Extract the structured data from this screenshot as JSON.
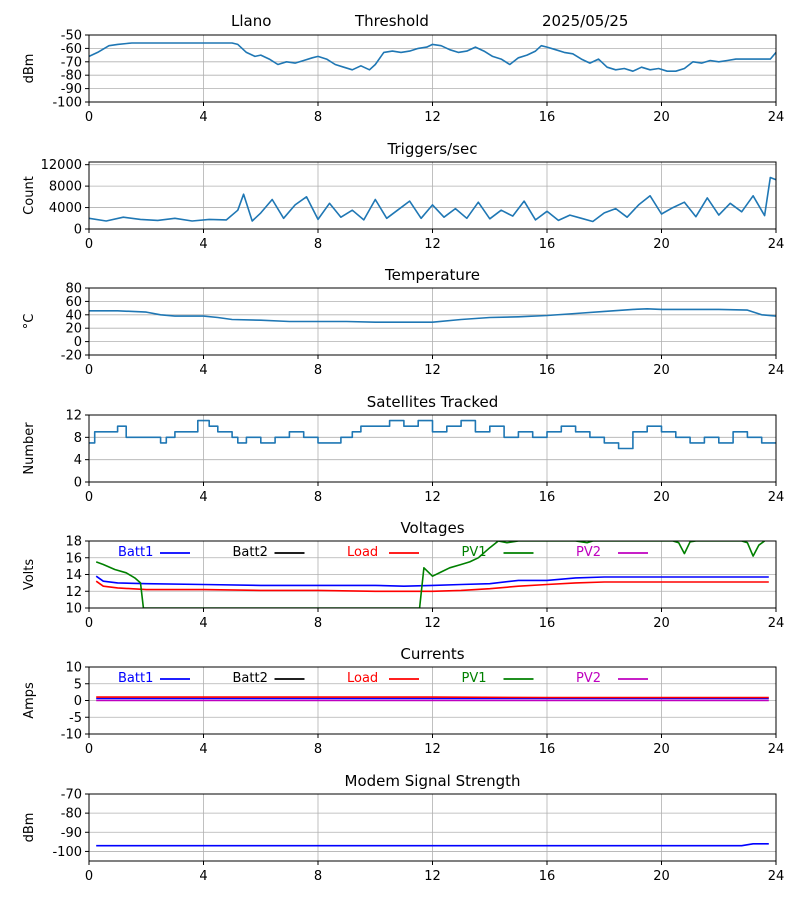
{
  "header": {
    "station": "Llano",
    "mode": "Threshold",
    "date": "2025/05/25"
  },
  "colors": {
    "series": "#1f77b4",
    "grid": "#b0b0b0",
    "batt1": "#0000ff",
    "batt2": "#000000",
    "load": "#ff0000",
    "pv1": "#008000",
    "pv2": "#bf00bf"
  },
  "chart_data": [
    {
      "id": "threshold",
      "type": "line",
      "title": "",
      "ylabel": "dBm",
      "grid": true,
      "xlim": [
        0,
        24
      ],
      "xticks": [
        0,
        4,
        8,
        12,
        16,
        20,
        24
      ],
      "ylim": [
        -100,
        -50
      ],
      "yticks": [
        -100,
        -90,
        -80,
        -70,
        -60,
        -50
      ],
      "series": [
        {
          "color_key": "series",
          "x": [
            0.0,
            0.3,
            0.7,
            1.0,
            1.5,
            2.0,
            2.5,
            3.0,
            3.5,
            4.0,
            4.5,
            5.0,
            5.2,
            5.5,
            5.8,
            6.0,
            6.3,
            6.6,
            6.9,
            7.2,
            7.5,
            7.8,
            8.0,
            8.3,
            8.6,
            8.9,
            9.2,
            9.5,
            9.8,
            10.0,
            10.3,
            10.6,
            10.9,
            11.2,
            11.5,
            11.8,
            12.0,
            12.3,
            12.6,
            12.9,
            13.2,
            13.5,
            13.8,
            14.1,
            14.4,
            14.7,
            15.0,
            15.3,
            15.6,
            15.8,
            16.0,
            16.3,
            16.6,
            16.9,
            17.2,
            17.5,
            17.8,
            18.1,
            18.4,
            18.7,
            19.0,
            19.3,
            19.6,
            19.9,
            20.2,
            20.5,
            20.8,
            21.1,
            21.4,
            21.7,
            22.0,
            22.3,
            22.6,
            22.9,
            23.2,
            23.5,
            23.8,
            24.0
          ],
          "y": [
            -66,
            -63,
            -58,
            -57,
            -56,
            -56,
            -56,
            -56,
            -56,
            -56,
            -56,
            -56,
            -57,
            -63,
            -66,
            -65,
            -68,
            -72,
            -70,
            -71,
            -69,
            -67,
            -66,
            -68,
            -72,
            -74,
            -76,
            -73,
            -76,
            -72,
            -63,
            -62,
            -63,
            -62,
            -60,
            -59,
            -57,
            -58,
            -61,
            -63,
            -62,
            -59,
            -62,
            -66,
            -68,
            -72,
            -67,
            -65,
            -62,
            -58,
            -59,
            -61,
            -63,
            -64,
            -68,
            -71,
            -68,
            -74,
            -76,
            -75,
            -77,
            -74,
            -76,
            -75,
            -77,
            -77,
            -75,
            -70,
            -71,
            -69,
            -70,
            -69,
            -68,
            -68,
            -68,
            -68,
            -68,
            -63
          ]
        }
      ]
    },
    {
      "id": "triggers",
      "type": "line",
      "title": "Triggers/sec",
      "ylabel": "Count",
      "grid": true,
      "xlim": [
        0,
        24
      ],
      "xticks": [
        0,
        4,
        8,
        12,
        16,
        20,
        24
      ],
      "ylim": [
        0,
        12500
      ],
      "yticks": [
        0,
        4000,
        8000,
        12000
      ],
      "series": [
        {
          "color_key": "series",
          "x": [
            0.0,
            0.6,
            1.2,
            1.8,
            2.4,
            3.0,
            3.6,
            4.2,
            4.8,
            5.2,
            5.4,
            5.7,
            6.0,
            6.4,
            6.8,
            7.2,
            7.6,
            8.0,
            8.4,
            8.8,
            9.2,
            9.6,
            10.0,
            10.4,
            10.8,
            11.2,
            11.6,
            12.0,
            12.4,
            12.8,
            13.2,
            13.6,
            14.0,
            14.4,
            14.8,
            15.2,
            15.6,
            16.0,
            16.4,
            16.8,
            17.2,
            17.6,
            18.0,
            18.4,
            18.8,
            19.2,
            19.6,
            20.0,
            20.4,
            20.8,
            21.2,
            21.6,
            22.0,
            22.4,
            22.8,
            23.2,
            23.6,
            23.8,
            24.0
          ],
          "y": [
            2000,
            1500,
            2200,
            1800,
            1600,
            2000,
            1500,
            1800,
            1700,
            3500,
            6500,
            1500,
            3000,
            5500,
            2000,
            4500,
            6000,
            1800,
            4800,
            2200,
            3500,
            1700,
            5500,
            2000,
            3600,
            5200,
            2000,
            4500,
            2200,
            3800,
            2000,
            5000,
            1900,
            3500,
            2400,
            5200,
            1700,
            3300,
            1600,
            2600,
            2000,
            1400,
            3000,
            3800,
            2200,
            4500,
            6200,
            2800,
            4000,
            5000,
            2300,
            5800,
            2600,
            4800,
            3200,
            6200,
            2500,
            9600,
            9200
          ]
        }
      ]
    },
    {
      "id": "temperature",
      "type": "line",
      "title": "Temperature",
      "ylabel": "°C",
      "grid": true,
      "xlim": [
        0,
        24
      ],
      "xticks": [
        0,
        4,
        8,
        12,
        16,
        20,
        24
      ],
      "ylim": [
        -20,
        80
      ],
      "yticks": [
        -20,
        0,
        20,
        40,
        60,
        80
      ],
      "series": [
        {
          "color_key": "series",
          "x": [
            0,
            1,
            2,
            2.5,
            3,
            4,
            4.5,
            5,
            6,
            7,
            8,
            9,
            10,
            11,
            12,
            13,
            14,
            15,
            16,
            17,
            18,
            19,
            19.5,
            20,
            21,
            22,
            23,
            23.5,
            24
          ],
          "y": [
            46,
            46,
            44,
            40,
            38,
            38,
            36,
            33,
            32,
            30,
            30,
            30,
            29,
            29,
            29,
            33,
            36,
            37,
            39,
            42,
            45,
            48,
            49,
            48,
            48,
            48,
            47,
            40,
            38
          ]
        }
      ]
    },
    {
      "id": "satellites",
      "type": "line",
      "title": "Satellites Tracked",
      "ylabel": "Number",
      "grid": true,
      "xlim": [
        0,
        24
      ],
      "xticks": [
        0,
        4,
        8,
        12,
        16,
        20,
        24
      ],
      "ylim": [
        0,
        12
      ],
      "yticks": [
        0,
        4,
        8,
        12
      ],
      "series": [
        {
          "color_key": "series",
          "step": true,
          "x": [
            0,
            0.2,
            1.0,
            1.3,
            1.5,
            2.5,
            2.7,
            3.0,
            3.8,
            4.2,
            4.5,
            5.0,
            5.2,
            5.5,
            6.0,
            6.5,
            7.0,
            7.5,
            8.0,
            8.2,
            8.8,
            9.2,
            9.5,
            10.0,
            10.5,
            11.0,
            11.5,
            12.0,
            12.5,
            13.0,
            13.5,
            14.0,
            14.5,
            15.0,
            15.5,
            16.0,
            16.5,
            17.0,
            17.5,
            18.0,
            18.5,
            19.0,
            19.5,
            20.0,
            20.5,
            21.0,
            21.5,
            22.0,
            22.5,
            23.0,
            23.5,
            24.0
          ],
          "y": [
            7,
            9,
            10,
            8,
            8,
            7,
            8,
            9,
            11,
            10,
            9,
            8,
            7,
            8,
            7,
            8,
            9,
            8,
            7,
            7,
            8,
            9,
            10,
            10,
            11,
            10,
            11,
            9,
            10,
            11,
            9,
            10,
            8,
            9,
            8,
            9,
            10,
            9,
            8,
            7,
            6,
            9,
            10,
            9,
            8,
            7,
            8,
            7,
            9,
            8,
            7,
            7
          ]
        }
      ]
    },
    {
      "id": "voltages",
      "type": "line",
      "title": "Voltages",
      "ylabel": "Volts",
      "grid": true,
      "xlim": [
        0,
        24
      ],
      "xticks": [
        0,
        4,
        8,
        12,
        16,
        20,
        24
      ],
      "ylim": [
        10,
        18
      ],
      "yticks": [
        10,
        12,
        14,
        16,
        18
      ],
      "legend": [
        "Batt1",
        "Batt2",
        "Load",
        "PV1",
        "PV2"
      ],
      "series": [
        {
          "name": "Batt1",
          "color_key": "batt1",
          "x": [
            0.25,
            0.5,
            1,
            2,
            4,
            6,
            8,
            10,
            11,
            12,
            13,
            14,
            15,
            16,
            17,
            18,
            20,
            22,
            23.75
          ],
          "y": [
            13.8,
            13.2,
            13.0,
            12.9,
            12.8,
            12.7,
            12.7,
            12.7,
            12.6,
            12.7,
            12.8,
            12.9,
            13.3,
            13.3,
            13.6,
            13.7,
            13.7,
            13.7,
            13.7
          ]
        },
        {
          "name": "Load",
          "color_key": "load",
          "x": [
            0.25,
            0.5,
            1,
            2,
            4,
            6,
            8,
            10,
            11,
            12,
            13,
            14,
            15,
            16,
            17,
            18,
            20,
            22,
            23.75
          ],
          "y": [
            13.2,
            12.6,
            12.4,
            12.2,
            12.2,
            12.1,
            12.1,
            12.0,
            12.0,
            12.0,
            12.1,
            12.3,
            12.6,
            12.8,
            13.0,
            13.1,
            13.1,
            13.1,
            13.1
          ]
        },
        {
          "name": "PV1",
          "color_key": "pv1",
          "x": [
            0.25,
            0.5,
            0.9,
            1.3,
            1.5,
            1.6,
            1.8,
            1.9,
            11.55,
            11.7,
            12.0,
            12.3,
            12.6,
            13.0,
            13.3,
            13.6,
            14.0,
            14.3,
            14.6,
            15.0,
            17.0,
            17.4,
            17.6,
            17.8,
            18.0,
            20.4,
            20.6,
            20.8,
            21.0,
            21.2,
            22.8,
            23.0,
            23.2,
            23.4,
            23.6
          ],
          "y": [
            15.5,
            15.2,
            14.6,
            14.2,
            13.8,
            13.6,
            13.0,
            10.0,
            10.0,
            14.8,
            13.8,
            14.3,
            14.8,
            15.2,
            15.5,
            16.0,
            17.2,
            18.0,
            17.8,
            18.0,
            18.0,
            17.8,
            18.0,
            18.0,
            18.0,
            18.0,
            17.8,
            16.5,
            17.9,
            18.0,
            18.0,
            17.8,
            16.2,
            17.5,
            18.0
          ]
        }
      ]
    },
    {
      "id": "currents",
      "type": "line",
      "title": "Currents",
      "ylabel": "Amps",
      "grid": true,
      "xlim": [
        0,
        24
      ],
      "xticks": [
        0,
        4,
        8,
        12,
        16,
        20,
        24
      ],
      "ylim": [
        -10,
        10
      ],
      "yticks": [
        -10,
        -5,
        0,
        5,
        10
      ],
      "legend": [
        "Batt1",
        "Batt2",
        "Load",
        "PV1",
        "PV2"
      ],
      "series": [
        {
          "name": "Batt1",
          "color_key": "batt1",
          "x": [
            0.25,
            23.75
          ],
          "y": [
            0.6,
            0.6
          ]
        },
        {
          "name": "Load",
          "color_key": "load",
          "x": [
            0.25,
            4,
            8,
            12,
            16,
            20,
            23.75
          ],
          "y": [
            1.0,
            1.0,
            1.0,
            1.0,
            0.9,
            0.9,
            0.9
          ]
        },
        {
          "name": "PV2",
          "color_key": "pv2",
          "x": [
            0.25,
            23.75
          ],
          "y": [
            0.0,
            0.0
          ]
        }
      ]
    },
    {
      "id": "modem",
      "type": "line",
      "title": "Modem Signal Strength",
      "ylabel": "dBm",
      "grid": true,
      "xlim": [
        0,
        24
      ],
      "xticks": [
        0,
        4,
        8,
        12,
        16,
        20,
        24
      ],
      "ylim": [
        -105,
        -70
      ],
      "yticks": [
        -100,
        -90,
        -80,
        -70
      ],
      "series": [
        {
          "color_key": "batt1",
          "x": [
            0.25,
            4,
            8,
            12,
            16,
            20,
            22,
            22.8,
            23.2,
            23.75
          ],
          "y": [
            -97,
            -97,
            -97,
            -97,
            -97,
            -97,
            -97,
            -97,
            -96,
            -96
          ]
        }
      ]
    }
  ]
}
